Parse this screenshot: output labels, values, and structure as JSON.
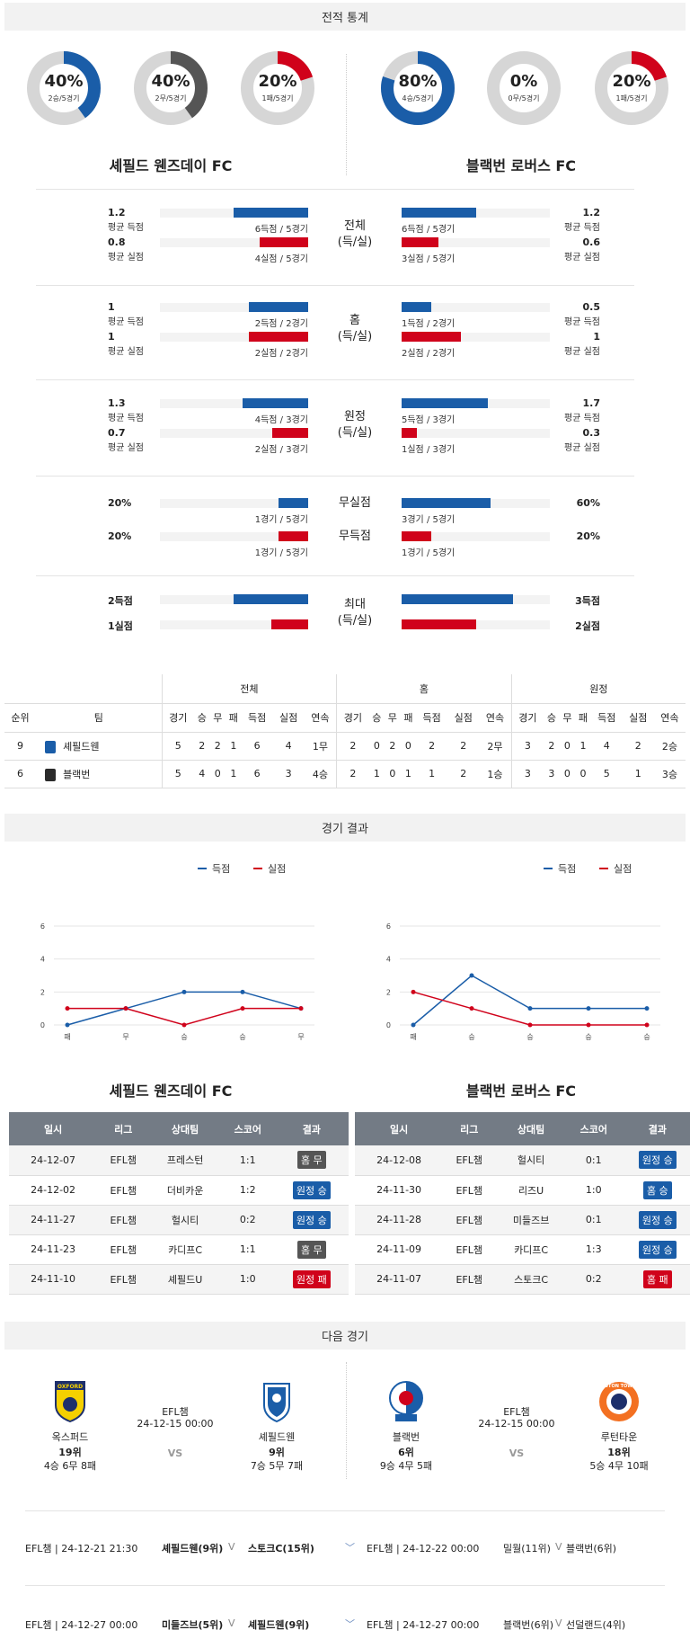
{
  "sections": {
    "stats": "전적 통계",
    "results": "경기 결과",
    "next": "다음 경기"
  },
  "teams": {
    "home": "셰필드 웬즈데이 FC",
    "away": "블랙번 로버스 FC"
  },
  "donuts": [
    {
      "pct": "40%",
      "sub": "2승/5경기",
      "value": 0.4,
      "color": "#1a5da8"
    },
    {
      "pct": "40%",
      "sub": "2무/5경기",
      "value": 0.4,
      "color": "#555555"
    },
    {
      "pct": "20%",
      "sub": "1패/5경기",
      "value": 0.2,
      "color": "#d0021b"
    },
    {
      "pct": "80%",
      "sub": "4승/5경기",
      "value": 0.8,
      "color": "#1a5da8"
    },
    {
      "pct": "0%",
      "sub": "0무/5경기",
      "value": 0,
      "color": "#555555"
    },
    {
      "pct": "20%",
      "sub": "1패/5경기",
      "value": 0.2,
      "color": "#d0021b"
    }
  ],
  "stat_groups": [
    {
      "label": "전체",
      "label2": "(득/실)",
      "rows": [
        {
          "l_num": "1.2",
          "l_lbl": "평균 득점",
          "l_cap": "6득점 / 5경기",
          "l_v": 0.5,
          "r_num": "1.2",
          "r_lbl": "평균 득점",
          "r_cap": "6득점 / 5경기",
          "r_v": 0.5,
          "kind": "blue"
        },
        {
          "l_num": "0.8",
          "l_lbl": "평균 실점",
          "l_cap": "4실점 / 5경기",
          "l_v": 0.33,
          "r_num": "0.6",
          "r_lbl": "평균 실점",
          "r_cap": "3실점 / 5경기",
          "r_v": 0.25,
          "kind": "red"
        }
      ]
    },
    {
      "label": "홈",
      "label2": "(득/실)",
      "rows": [
        {
          "l_num": "1",
          "l_lbl": "평균 득점",
          "l_cap": "2득점 / 2경기",
          "l_v": 0.4,
          "r_num": "0.5",
          "r_lbl": "평균 득점",
          "r_cap": "1득점 / 2경기",
          "r_v": 0.2,
          "kind": "blue"
        },
        {
          "l_num": "1",
          "l_lbl": "평균 실점",
          "l_cap": "2실점 / 2경기",
          "l_v": 0.4,
          "r_num": "1",
          "r_lbl": "평균 실점",
          "r_cap": "2실점 / 2경기",
          "r_v": 0.4,
          "kind": "red"
        }
      ]
    },
    {
      "label": "원정",
      "label2": "(득/실)",
      "rows": [
        {
          "l_num": "1.3",
          "l_lbl": "평균 득점",
          "l_cap": "4득점 / 3경기",
          "l_v": 0.44,
          "r_num": "1.7",
          "r_lbl": "평균 득점",
          "r_cap": "5득점 / 3경기",
          "r_v": 0.58,
          "kind": "blue"
        },
        {
          "l_num": "0.7",
          "l_lbl": "평균 실점",
          "l_cap": "2실점 / 3경기",
          "l_v": 0.24,
          "r_num": "0.3",
          "r_lbl": "평균 실점",
          "r_cap": "1실점 / 3경기",
          "r_v": 0.1,
          "kind": "red"
        }
      ]
    }
  ],
  "clean": {
    "label": "무실점",
    "l_num": "20%",
    "l_cap": "1경기 / 5경기",
    "l_v": 0.2,
    "r_num": "60%",
    "r_cap": "3경기 / 5경기",
    "r_v": 0.6
  },
  "noscore": {
    "label": "무득점",
    "l_num": "20%",
    "l_cap": "1경기 / 5경기",
    "l_v": 0.2,
    "r_num": "20%",
    "r_cap": "1경기 / 5경기",
    "r_v": 0.2
  },
  "max": {
    "label": "최대",
    "label2": "(득/실)",
    "l_score": "2득점",
    "l_concede": "1실점",
    "r_score": "3득점",
    "r_concede": "2실점",
    "l_sv": 0.5,
    "l_cv": 0.25,
    "r_sv": 0.75,
    "r_cv": 0.5
  },
  "standings": {
    "groups": [
      "전체",
      "홈",
      "원정"
    ],
    "headers": [
      "순위",
      "팀",
      "경기",
      "승",
      "무",
      "패",
      "득점",
      "실점",
      "연속",
      "경기",
      "승",
      "무",
      "패",
      "득점",
      "실점",
      "연속",
      "경기",
      "승",
      "무",
      "패",
      "득점",
      "실점",
      "연속"
    ],
    "rows": [
      {
        "rank": "9",
        "team": "셰필드웬",
        "cells": [
          "5",
          "2",
          "2",
          "1",
          "6",
          "4",
          "1무",
          "2",
          "0",
          "2",
          "0",
          "2",
          "2",
          "2무",
          "3",
          "2",
          "0",
          "1",
          "4",
          "2",
          "2승"
        ]
      },
      {
        "rank": "6",
        "team": "블랙번",
        "cells": [
          "5",
          "4",
          "0",
          "1",
          "6",
          "3",
          "4승",
          "2",
          "1",
          "0",
          "1",
          "1",
          "2",
          "1승",
          "3",
          "3",
          "0",
          "0",
          "5",
          "1",
          "3승"
        ]
      }
    ]
  },
  "chart_data": [
    {
      "type": "line",
      "categories": [
        "패",
        "무",
        "승",
        "승",
        "무"
      ],
      "series": [
        {
          "name": "득점",
          "values": [
            0,
            1,
            2,
            2,
            1
          ],
          "color": "#1a5da8"
        },
        {
          "name": "실점",
          "values": [
            1,
            1,
            0,
            1,
            1
          ],
          "color": "#d0021b"
        }
      ],
      "yticks": [
        0,
        2,
        4,
        6
      ],
      "ylim": [
        0,
        6
      ]
    },
    {
      "type": "line",
      "categories": [
        "패",
        "승",
        "승",
        "승",
        "승"
      ],
      "series": [
        {
          "name": "득점",
          "values": [
            0,
            3,
            1,
            1,
            1
          ],
          "color": "#1a5da8"
        },
        {
          "name": "실점",
          "values": [
            2,
            1,
            0,
            0,
            0
          ],
          "color": "#d0021b"
        }
      ],
      "yticks": [
        0,
        2,
        4,
        6
      ],
      "ylim": [
        0,
        6
      ]
    }
  ],
  "results_headers": [
    "일시",
    "리그",
    "상대팀",
    "스코어",
    "결과"
  ],
  "results_home": [
    {
      "date": "24-12-07",
      "league": "EFL챔",
      "opp": "프레스턴",
      "score": "1:1",
      "res": "홈 무",
      "c": "grey"
    },
    {
      "date": "24-12-02",
      "league": "EFL챔",
      "opp": "더비카운",
      "score": "1:2",
      "res": "원정 승",
      "c": "blue"
    },
    {
      "date": "24-11-27",
      "league": "EFL챔",
      "opp": "헐시티",
      "score": "0:2",
      "res": "원정 승",
      "c": "blue"
    },
    {
      "date": "24-11-23",
      "league": "EFL챔",
      "opp": "카디프C",
      "score": "1:1",
      "res": "홈 무",
      "c": "grey"
    },
    {
      "date": "24-11-10",
      "league": "EFL챔",
      "opp": "셰필드U",
      "score": "1:0",
      "res": "원정 패",
      "c": "red"
    }
  ],
  "results_away": [
    {
      "date": "24-12-08",
      "league": "EFL챔",
      "opp": "헐시티",
      "score": "0:1",
      "res": "원정 승",
      "c": "blue"
    },
    {
      "date": "24-11-30",
      "league": "EFL챔",
      "opp": "리즈U",
      "score": "1:0",
      "res": "홈 승",
      "c": "blue"
    },
    {
      "date": "24-11-28",
      "league": "EFL챔",
      "opp": "미들즈브",
      "score": "0:1",
      "res": "원정 승",
      "c": "blue"
    },
    {
      "date": "24-11-09",
      "league": "EFL챔",
      "opp": "카디프C",
      "score": "1:3",
      "res": "원정 승",
      "c": "blue"
    },
    {
      "date": "24-11-07",
      "league": "EFL챔",
      "opp": "스토크C",
      "score": "0:2",
      "res": "홈 패",
      "c": "red"
    }
  ],
  "next_left": {
    "home": "옥스퍼드",
    "home_rank": "19위",
    "home_rec": "4승 6무 8패",
    "league": "EFL챔",
    "time": "24-12-15 00:00",
    "vs": "VS",
    "away": "셰필드웬",
    "away_rank": "9위",
    "away_rec": "7승 5무 7패",
    "home_logo": "OXFORD UNITED"
  },
  "next_right": {
    "home": "블랙번",
    "home_rank": "6위",
    "home_rec": "9승 4무 5패",
    "league": "EFL챔",
    "time": "24-12-15 00:00",
    "vs": "VS",
    "away": "루턴타운",
    "away_rank": "18위",
    "away_rec": "5승 4무 10패",
    "away_logo": "LUTON TOWN FOOTBALL CLUB"
  },
  "future": [
    {
      "l_info": "EFL챔 | 24-12-21 21:30",
      "l_home": "셰필드웬(9위)",
      "l_vs": "V",
      "l_away": "스토크C(15위)",
      "r_info": "EFL챔 | 24-12-22 00:00",
      "r_home": "밀월(11위)",
      "r_vs": "V",
      "r_away": "블랙번(6위)"
    },
    {
      "l_info": "EFL챔 | 24-12-27 00:00",
      "l_home": "미들즈브(5위)",
      "l_vs": "V",
      "l_away": "셰필드웬(9위)",
      "r_info": "EFL챔 | 24-12-27 00:00",
      "r_home": "블랙번(6위)",
      "r_vs": "V",
      "r_away": "선덜랜드(4위)"
    }
  ]
}
